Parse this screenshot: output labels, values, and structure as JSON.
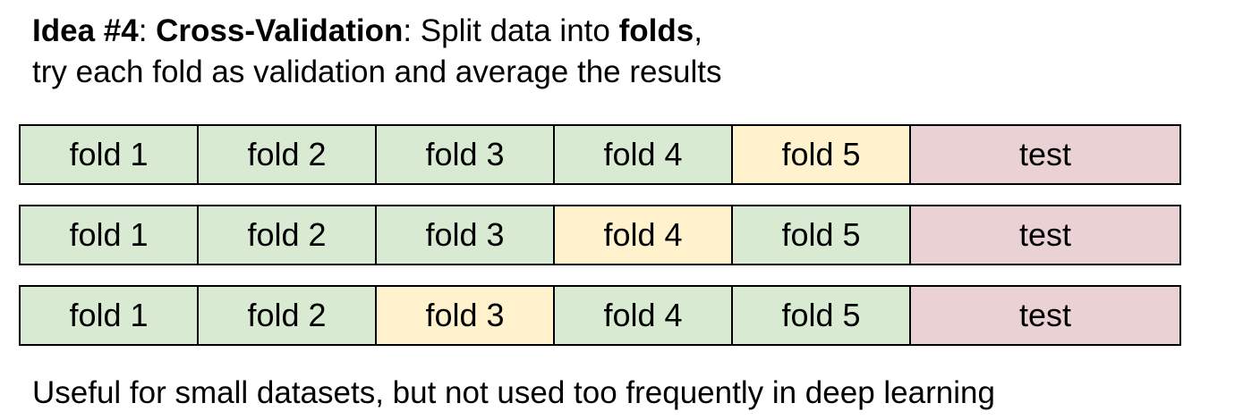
{
  "heading": {
    "idea_label": "Idea #4",
    "sep1": ": ",
    "method": "Cross-Validation",
    "sep2": ": Split data into ",
    "folds_word": "folds",
    "sep3": ",",
    "line2": "try each fold as validation and average the results"
  },
  "colors": {
    "train": "#d9ead3",
    "validation": "#fff2cc",
    "test": "#ead1d3",
    "border": "#000000"
  },
  "rows": [
    {
      "cells": [
        {
          "label": "fold 1",
          "role": "train"
        },
        {
          "label": "fold 2",
          "role": "train"
        },
        {
          "label": "fold 3",
          "role": "train"
        },
        {
          "label": "fold 4",
          "role": "train"
        },
        {
          "label": "fold 5",
          "role": "validation"
        },
        {
          "label": "test",
          "role": "test"
        }
      ]
    },
    {
      "cells": [
        {
          "label": "fold 1",
          "role": "train"
        },
        {
          "label": "fold 2",
          "role": "train"
        },
        {
          "label": "fold 3",
          "role": "train"
        },
        {
          "label": "fold 4",
          "role": "validation"
        },
        {
          "label": "fold 5",
          "role": "train"
        },
        {
          "label": "test",
          "role": "test"
        }
      ]
    },
    {
      "cells": [
        {
          "label": "fold 1",
          "role": "train"
        },
        {
          "label": "fold 2",
          "role": "train"
        },
        {
          "label": "fold 3",
          "role": "validation"
        },
        {
          "label": "fold 4",
          "role": "train"
        },
        {
          "label": "fold 5",
          "role": "train"
        },
        {
          "label": "test",
          "role": "test"
        }
      ]
    }
  ],
  "footer": "Useful for small datasets, but not used too frequently in deep learning"
}
